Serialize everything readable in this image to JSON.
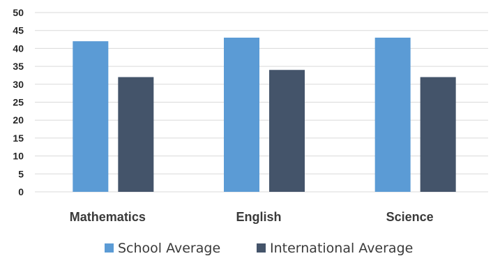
{
  "chart_data": {
    "type": "bar",
    "categories": [
      "Mathematics",
      "English",
      "Science"
    ],
    "series": [
      {
        "name": "School Average",
        "values": [
          42,
          43,
          43
        ],
        "color": "#5b9bd5"
      },
      {
        "name": "International Average",
        "values": [
          32,
          34,
          32
        ],
        "color": "#44546a"
      }
    ],
    "title": "",
    "xlabel": "",
    "ylabel": "",
    "ylim": [
      0,
      50
    ],
    "yticks": [
      0,
      5,
      10,
      15,
      20,
      25,
      30,
      35,
      40,
      45,
      50
    ],
    "grid": true,
    "legend_position": "bottom"
  }
}
